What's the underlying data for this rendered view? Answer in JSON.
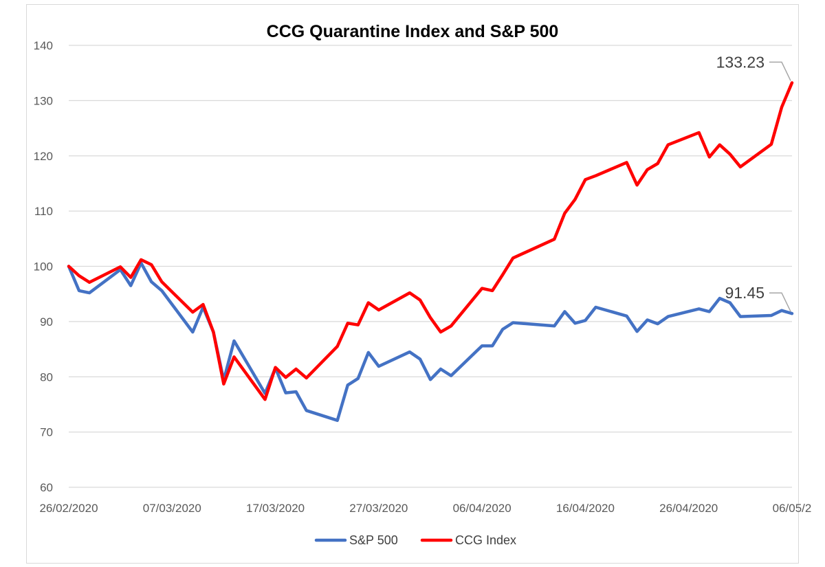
{
  "colors": {
    "sp500": "#4472c4",
    "ccg": "#ff0000",
    "grid": "#d9d9d9",
    "text": "#595959"
  },
  "chart_data": {
    "type": "line",
    "title": "CCG Quarantine Index and S&P 500",
    "xlabel": "",
    "ylabel": "",
    "ylim": [
      60,
      140
    ],
    "yticks": [
      60,
      70,
      80,
      90,
      100,
      110,
      120,
      130,
      140
    ],
    "xlim": [
      "2020-02-26",
      "2020-05-06"
    ],
    "xtick_labels": [
      "26/02/2020",
      "07/03/2020",
      "17/03/2020",
      "27/03/2020",
      "06/04/2020",
      "16/04/2020",
      "26/04/2020",
      "06/05/2"
    ],
    "xtick_dates": [
      "2020-02-26",
      "2020-03-07",
      "2020-03-17",
      "2020-03-27",
      "2020-04-06",
      "2020-04-16",
      "2020-04-26",
      "2020-05-06"
    ],
    "grid": true,
    "legend_position": "bottom",
    "series": [
      {
        "name": "S&P 500",
        "color": "#4472c4",
        "end_label": "91.45",
        "points": [
          [
            "2020-02-26",
            100.0
          ],
          [
            "2020-02-27",
            95.6
          ],
          [
            "2020-02-28",
            95.2
          ],
          [
            "2020-03-02",
            99.4
          ],
          [
            "2020-03-03",
            96.5
          ],
          [
            "2020-03-04",
            100.6
          ],
          [
            "2020-03-05",
            97.2
          ],
          [
            "2020-03-06",
            95.6
          ],
          [
            "2020-03-09",
            88.1
          ],
          [
            "2020-03-10",
            92.6
          ],
          [
            "2020-03-11",
            88.1
          ],
          [
            "2020-03-12",
            79.4
          ],
          [
            "2020-03-13",
            86.5
          ],
          [
            "2020-03-16",
            77.0
          ],
          [
            "2020-03-17",
            81.6
          ],
          [
            "2020-03-18",
            77.1
          ],
          [
            "2020-03-19",
            77.3
          ],
          [
            "2020-03-20",
            73.9
          ],
          [
            "2020-03-23",
            72.1
          ],
          [
            "2020-03-24",
            78.5
          ],
          [
            "2020-03-25",
            79.7
          ],
          [
            "2020-03-26",
            84.4
          ],
          [
            "2020-03-27",
            81.9
          ],
          [
            "2020-03-30",
            84.5
          ],
          [
            "2020-03-31",
            83.2
          ],
          [
            "2020-04-01",
            79.5
          ],
          [
            "2020-04-02",
            81.4
          ],
          [
            "2020-04-03",
            80.2
          ],
          [
            "2020-04-06",
            85.6
          ],
          [
            "2020-04-07",
            85.6
          ],
          [
            "2020-04-08",
            88.6
          ],
          [
            "2020-04-09",
            89.8
          ],
          [
            "2020-04-13",
            89.2
          ],
          [
            "2020-04-14",
            91.8
          ],
          [
            "2020-04-15",
            89.7
          ],
          [
            "2020-04-16",
            90.2
          ],
          [
            "2020-04-17",
            92.6
          ],
          [
            "2020-04-20",
            91.0
          ],
          [
            "2020-04-21",
            88.2
          ],
          [
            "2020-04-22",
            90.3
          ],
          [
            "2020-04-23",
            89.6
          ],
          [
            "2020-04-24",
            90.9
          ],
          [
            "2020-04-27",
            92.3
          ],
          [
            "2020-04-28",
            91.8
          ],
          [
            "2020-04-29",
            94.2
          ],
          [
            "2020-04-30",
            93.4
          ],
          [
            "2020-05-01",
            90.9
          ],
          [
            "2020-05-04",
            91.1
          ],
          [
            "2020-05-05",
            92.0
          ],
          [
            "2020-05-06",
            91.45
          ]
        ]
      },
      {
        "name": "CCG Index",
        "color": "#ff0000",
        "end_label": "133.23",
        "points": [
          [
            "2020-02-26",
            100.0
          ],
          [
            "2020-02-27",
            98.3
          ],
          [
            "2020-02-28",
            97.1
          ],
          [
            "2020-03-02",
            99.9
          ],
          [
            "2020-03-03",
            98.0
          ],
          [
            "2020-03-04",
            101.2
          ],
          [
            "2020-03-05",
            100.3
          ],
          [
            "2020-03-06",
            97.2
          ],
          [
            "2020-03-09",
            91.7
          ],
          [
            "2020-03-10",
            93.1
          ],
          [
            "2020-03-11",
            88.1
          ],
          [
            "2020-03-12",
            78.7
          ],
          [
            "2020-03-13",
            83.6
          ],
          [
            "2020-03-16",
            75.9
          ],
          [
            "2020-03-17",
            81.7
          ],
          [
            "2020-03-18",
            79.9
          ],
          [
            "2020-03-19",
            81.4
          ],
          [
            "2020-03-20",
            79.8
          ],
          [
            "2020-03-23",
            85.5
          ],
          [
            "2020-03-24",
            89.7
          ],
          [
            "2020-03-25",
            89.4
          ],
          [
            "2020-03-26",
            93.4
          ],
          [
            "2020-03-27",
            92.1
          ],
          [
            "2020-03-30",
            95.2
          ],
          [
            "2020-03-31",
            93.9
          ],
          [
            "2020-04-01",
            90.7
          ],
          [
            "2020-04-02",
            88.1
          ],
          [
            "2020-04-03",
            89.2
          ],
          [
            "2020-04-06",
            96.0
          ],
          [
            "2020-04-07",
            95.6
          ],
          [
            "2020-04-08",
            98.5
          ],
          [
            "2020-04-09",
            101.5
          ],
          [
            "2020-04-13",
            104.9
          ],
          [
            "2020-04-14",
            109.6
          ],
          [
            "2020-04-15",
            112.1
          ],
          [
            "2020-04-16",
            115.7
          ],
          [
            "2020-04-17",
            116.4
          ],
          [
            "2020-04-20",
            118.8
          ],
          [
            "2020-04-21",
            114.7
          ],
          [
            "2020-04-22",
            117.5
          ],
          [
            "2020-04-23",
            118.6
          ],
          [
            "2020-04-24",
            122.0
          ],
          [
            "2020-04-27",
            124.2
          ],
          [
            "2020-04-28",
            119.8
          ],
          [
            "2020-04-29",
            122.0
          ],
          [
            "2020-04-30",
            120.3
          ],
          [
            "2020-05-01",
            118.0
          ],
          [
            "2020-05-04",
            122.1
          ],
          [
            "2020-05-05",
            128.8
          ],
          [
            "2020-05-06",
            133.23
          ]
        ]
      }
    ]
  }
}
